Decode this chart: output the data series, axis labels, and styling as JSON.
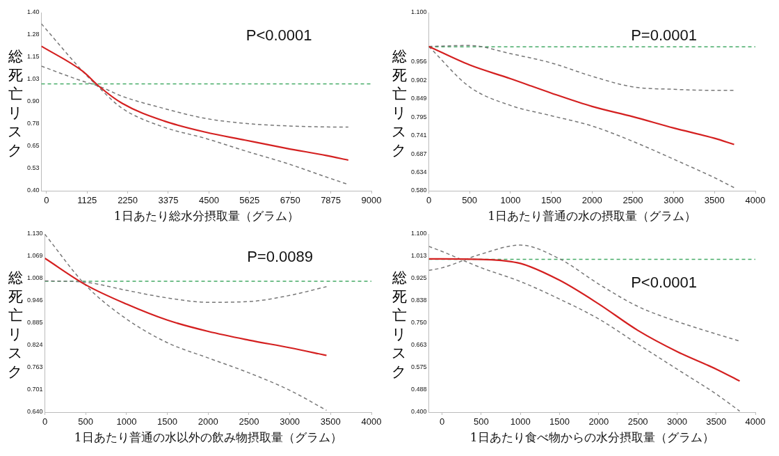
{
  "chart_data": [
    {
      "type": "line",
      "xlabel": "1日あたり総水分摂取量（グラム）",
      "ylabel": "総死亡リスク",
      "annotations": [
        "P<0.0001"
      ],
      "grid": false,
      "legend": false,
      "marker": "none",
      "xlim": [
        -140,
        9000
      ],
      "xticks": [
        0,
        1125,
        2250,
        3375,
        4500,
        5625,
        6750,
        7875,
        9000
      ],
      "ylim": [
        0.4,
        1.4
      ],
      "yticks": [
        {
          "value": 0.4,
          "label": "0.40"
        },
        {
          "value": 0.525,
          "label": "0.53"
        },
        {
          "value": 0.65,
          "label": "0.65"
        },
        {
          "value": 0.775,
          "label": "0.78"
        },
        {
          "value": 0.9,
          "label": "0.90"
        },
        {
          "value": 1.025,
          "label": "1.03"
        },
        {
          "value": 1.15,
          "label": "1.15"
        },
        {
          "value": 1.275,
          "label": "1.28"
        },
        {
          "value": 1.4,
          "label": "1.40"
        }
      ],
      "x": [
        -140,
        1000,
        1450,
        2100,
        3250,
        4400,
        5500,
        6650,
        7750,
        8360
      ],
      "series": [
        {
          "color": "#d42020",
          "line_style": "solid",
          "values": [
            1.211,
            1.071,
            0.987,
            0.89,
            0.792,
            0.729,
            0.684,
            0.638,
            0.598,
            0.572
          ]
        },
        {
          "color": "#777777",
          "line_style": "dashed",
          "values": [
            1.099,
            1.015,
            0.987,
            0.93,
            0.862,
            0.806,
            0.778,
            0.764,
            0.758,
            0.757
          ]
        },
        {
          "color": "#777777",
          "line_style": "dashed",
          "values": [
            1.337,
            1.071,
            0.98,
            0.862,
            0.757,
            0.694,
            0.624,
            0.554,
            0.477,
            0.435
          ]
        }
      ],
      "ref_lines": [
        {
          "axis": "y",
          "value": 1.0,
          "color": "#44aa66",
          "line_style": "dashed"
        }
      ]
    },
    {
      "type": "line",
      "xlabel": "1日あたり普通の水の摂取量（グラム）",
      "ylabel": "総死亡リスク",
      "annotations": [
        "P=0.0001"
      ],
      "grid": false,
      "legend": false,
      "marker": "none",
      "xlim": [
        0,
        4000
      ],
      "xticks": [
        0,
        500,
        1000,
        1500,
        2000,
        2500,
        3000,
        3500,
        4000
      ],
      "ylim": [
        0.58,
        1.1
      ],
      "yticks": [
        {
          "value": 0.58,
          "label": "0.580"
        },
        {
          "value": 0.634,
          "label": "0.634"
        },
        {
          "value": 0.687,
          "label": "0.687"
        },
        {
          "value": 0.741,
          "label": "0.741"
        },
        {
          "value": 0.795,
          "label": "0.795"
        },
        {
          "value": 0.849,
          "label": "0.849"
        },
        {
          "value": 0.902,
          "label": "0.902"
        },
        {
          "value": 0.956,
          "label": "0.956"
        },
        {
          "value": 1.1,
          "label": "1.100"
        }
      ],
      "x": [
        0,
        500,
        1000,
        1500,
        2000,
        2500,
        3000,
        3500,
        3740
      ],
      "series": [
        {
          "color": "#d42020",
          "line_style": "solid",
          "values": [
            1.001,
            0.947,
            0.907,
            0.865,
            0.826,
            0.796,
            0.763,
            0.733,
            0.715
          ]
        },
        {
          "color": "#777777",
          "line_style": "dashed",
          "values": [
            1.001,
            1.004,
            0.98,
            0.953,
            0.914,
            0.883,
            0.876,
            0.873,
            0.873
          ]
        },
        {
          "color": "#777777",
          "line_style": "dashed",
          "values": [
            1.001,
            0.883,
            0.829,
            0.799,
            0.769,
            0.724,
            0.672,
            0.618,
            0.589
          ]
        }
      ],
      "ref_lines": [
        {
          "axis": "y",
          "value": 1.0,
          "color": "#44aa66",
          "line_style": "dashed"
        }
      ]
    },
    {
      "type": "line",
      "xlabel": "1日あたり普通の水以外の飲み物摂取量（グラム）",
      "ylabel": "総死亡リスク",
      "annotations": [
        "P=0.0089"
      ],
      "grid": false,
      "legend": false,
      "marker": "none",
      "xlim": [
        0,
        4000
      ],
      "xticks": [
        0,
        500,
        1000,
        1500,
        2000,
        2500,
        3000,
        3500,
        4000
      ],
      "ylim": [
        0.64,
        1.13
      ],
      "yticks": [
        {
          "value": 0.64,
          "label": "0.640"
        },
        {
          "value": 0.70125,
          "label": "0.701"
        },
        {
          "value": 0.7625,
          "label": "0.763"
        },
        {
          "value": 0.82375,
          "label": "0.824"
        },
        {
          "value": 0.885,
          "label": "0.885"
        },
        {
          "value": 0.94625,
          "label": "0.946"
        },
        {
          "value": 1.0075,
          "label": "1.008"
        },
        {
          "value": 1.06875,
          "label": "1.069"
        },
        {
          "value": 1.13,
          "label": "1.130"
        }
      ],
      "x": [
        0,
        500,
        1000,
        1500,
        2000,
        2500,
        3000,
        3450
      ],
      "series": [
        {
          "color": "#d42020",
          "line_style": "solid",
          "values": [
            1.063,
            0.99,
            0.937,
            0.893,
            0.862,
            0.838,
            0.817,
            0.796
          ]
        },
        {
          "color": "#777777",
          "line_style": "dashed",
          "values": [
            1.001,
            0.997,
            0.975,
            0.954,
            0.942,
            0.944,
            0.961,
            0.985
          ]
        },
        {
          "color": "#777777",
          "line_style": "dashed",
          "values": [
            1.129,
            0.989,
            0.896,
            0.831,
            0.789,
            0.748,
            0.7,
            0.645
          ]
        }
      ],
      "ref_lines": [
        {
          "axis": "y",
          "value": 1.0,
          "color": "#44aa66",
          "line_style": "dashed"
        }
      ]
    },
    {
      "type": "line",
      "xlabel": "1日あたり食べ物からの水分摂取量（グラム）",
      "ylabel": "総死亡リスク",
      "annotations": [
        "P<0.0001"
      ],
      "grid": false,
      "legend": false,
      "marker": "none",
      "xlim": [
        -170,
        4000
      ],
      "xticks": [
        0,
        500,
        1000,
        1500,
        2000,
        2500,
        3000,
        3500,
        4000
      ],
      "ylim": [
        0.4,
        1.1
      ],
      "yticks": [
        {
          "value": 0.4,
          "label": "0.400"
        },
        {
          "value": 0.4875,
          "label": "0.488"
        },
        {
          "value": 0.575,
          "label": "0.575"
        },
        {
          "value": 0.6625,
          "label": "0.663"
        },
        {
          "value": 0.75,
          "label": "0.750"
        },
        {
          "value": 0.8375,
          "label": "0.838"
        },
        {
          "value": 0.925,
          "label": "0.925"
        },
        {
          "value": 1.0125,
          "label": "1.013"
        },
        {
          "value": 1.1,
          "label": "1.100"
        }
      ],
      "x": [
        -170,
        0,
        500,
        1000,
        1500,
        2000,
        2500,
        3000,
        3500,
        3800
      ],
      "series": [
        {
          "color": "#d42020",
          "line_style": "solid",
          "values": [
            1.002,
            1.002,
            1.0,
            0.984,
            0.918,
            0.825,
            0.721,
            0.638,
            0.569,
            0.522
          ]
        },
        {
          "color": "#777777",
          "line_style": "dashed",
          "values": [
            0.957,
            0.967,
            1.021,
            1.056,
            1.002,
            0.903,
            0.815,
            0.756,
            0.707,
            0.679
          ]
        },
        {
          "color": "#777777",
          "line_style": "dashed",
          "values": [
            1.051,
            1.031,
            0.967,
            0.913,
            0.844,
            0.766,
            0.667,
            0.569,
            0.471,
            0.404
          ]
        }
      ],
      "ref_lines": [
        {
          "axis": "y",
          "value": 1.0,
          "color": "#44aa66",
          "line_style": "dashed"
        }
      ]
    }
  ]
}
